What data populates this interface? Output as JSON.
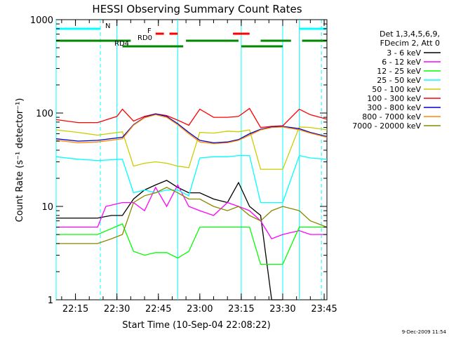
{
  "chart_data": {
    "type": "line",
    "title": "HESSI Observing Summary Count Rates",
    "xlabel": "Start Time (10-Sep-04 22:08:22)",
    "ylabel": "Count Rate (s⁻¹ detector⁻¹)",
    "yscale": "log",
    "ylim": [
      1,
      1000
    ],
    "xlim_minutes_of_day": [
      1328,
      1426
    ],
    "x_ticks": [
      {
        "label": "22:15",
        "minute": 1335
      },
      {
        "label": "22:30",
        "minute": 1350
      },
      {
        "label": "22:45",
        "minute": 1365
      },
      {
        "label": "23:00",
        "minute": 1380
      },
      {
        "label": "23:15",
        "minute": 1395
      },
      {
        "label": "23:30",
        "minute": 1410
      },
      {
        "label": "23:45",
        "minute": 1425
      }
    ],
    "y_ticks": [
      {
        "label": "1",
        "value": 1
      },
      {
        "label": "10",
        "value": 10
      },
      {
        "label": "100",
        "value": 100
      },
      {
        "label": "1000",
        "value": 1000
      }
    ],
    "legend_header": [
      "Det 1,3,4,5,6,9,",
      "FDecim 2, Att 0"
    ],
    "legend_position": "right",
    "series": [
      {
        "name": "3 - 6 keV",
        "color": "#000000",
        "x": [
          1328,
          1336,
          1343,
          1348,
          1352,
          1356,
          1360,
          1364,
          1368,
          1372,
          1376,
          1380,
          1385,
          1390,
          1394,
          1398,
          1402,
          1406,
          1410,
          1416,
          1420,
          1426
        ],
        "y": [
          7.5,
          7.5,
          7.5,
          8,
          8,
          12,
          15,
          17,
          19,
          16,
          14,
          14,
          12,
          11,
          18,
          10,
          8,
          1,
          1,
          null,
          null,
          null
        ]
      },
      {
        "name": "6 - 12 keV",
        "color": "#ff00ff",
        "x": [
          1328,
          1336,
          1343,
          1346,
          1352,
          1356,
          1360,
          1364,
          1368,
          1372,
          1376,
          1380,
          1385,
          1390,
          1394,
          1398,
          1402,
          1406,
          1410,
          1416,
          1420,
          1426
        ],
        "y": [
          6,
          6,
          6,
          10,
          11,
          11,
          9,
          16,
          10,
          17,
          10,
          9,
          8,
          11,
          10,
          9,
          7,
          4.5,
          5,
          5.5,
          5,
          5
        ]
      },
      {
        "name": "12 - 25 keV",
        "color": "#00ff00",
        "x": [
          1328,
          1336,
          1343,
          1352,
          1356,
          1360,
          1364,
          1368,
          1372,
          1376,
          1380,
          1385,
          1390,
          1394,
          1398,
          1402,
          1406,
          1410,
          1416,
          1420,
          1426
        ],
        "y": [
          5,
          5,
          5,
          6.5,
          3.3,
          3,
          3.2,
          3.2,
          2.8,
          3.3,
          6,
          6,
          6,
          6,
          6,
          2.4,
          2.4,
          2.4,
          6,
          6,
          6
        ]
      },
      {
        "name": "25 - 50 keV",
        "color": "#00ffff",
        "x": [
          1328,
          1336,
          1343,
          1352,
          1356,
          1360,
          1364,
          1368,
          1372,
          1376,
          1380,
          1385,
          1390,
          1394,
          1398,
          1402,
          1406,
          1410,
          1416,
          1420,
          1426
        ],
        "y": [
          34,
          32,
          31,
          32,
          14,
          15,
          14,
          15,
          15,
          13,
          33,
          34,
          34,
          35,
          35,
          11,
          11,
          11,
          35,
          33,
          32
        ]
      },
      {
        "name": "50 - 100 keV",
        "color": "#cccc00",
        "x": [
          1328,
          1336,
          1343,
          1352,
          1356,
          1360,
          1364,
          1368,
          1372,
          1376,
          1380,
          1385,
          1390,
          1394,
          1398,
          1402,
          1406,
          1410,
          1416,
          1420,
          1426
        ],
        "y": [
          66,
          62,
          58,
          63,
          27,
          29,
          30,
          29,
          27,
          26,
          62,
          61,
          64,
          63,
          66,
          25,
          25,
          25,
          71,
          70,
          66
        ]
      },
      {
        "name": "100 - 300 keV",
        "color": "#ff0000",
        "x": [
          1328,
          1336,
          1343,
          1350,
          1352,
          1356,
          1360,
          1364,
          1368,
          1372,
          1376,
          1380,
          1385,
          1390,
          1394,
          1398,
          1402,
          1406,
          1410,
          1416,
          1420,
          1426
        ],
        "y": [
          85,
          79,
          79,
          92,
          110,
          82,
          92,
          98,
          94,
          84,
          74,
          110,
          90,
          90,
          92,
          112,
          70,
          72,
          73,
          110,
          96,
          86
        ]
      },
      {
        "name": "300 - 800 keV",
        "color": "#0000cc",
        "x": [
          1328,
          1336,
          1343,
          1352,
          1356,
          1360,
          1364,
          1368,
          1372,
          1376,
          1380,
          1385,
          1390,
          1394,
          1398,
          1402,
          1406,
          1410,
          1416,
          1420,
          1426
        ],
        "y": [
          53,
          50,
          51,
          55,
          75,
          90,
          98,
          92,
          77,
          62,
          51,
          48,
          49,
          52,
          60,
          67,
          71,
          72,
          68,
          62,
          56
        ]
      },
      {
        "name": "800 - 7000 keV",
        "color": "#ff8800",
        "x": [
          1328,
          1336,
          1343,
          1352,
          1356,
          1360,
          1364,
          1368,
          1372,
          1376,
          1380,
          1385,
          1390,
          1394,
          1398,
          1402,
          1406,
          1410,
          1416,
          1420,
          1426
        ],
        "y": [
          51,
          48,
          49,
          53,
          74,
          89,
          96,
          90,
          75,
          60,
          49,
          47,
          48,
          51,
          58,
          66,
          70,
          71,
          66,
          61,
          55
        ]
      },
      {
        "name": "7000 - 20000 keV",
        "color": "#888800",
        "x": [
          1328,
          1336,
          1343,
          1348,
          1352,
          1356,
          1360,
          1364,
          1368,
          1372,
          1376,
          1380,
          1385,
          1390,
          1394,
          1398,
          1402,
          1406,
          1410,
          1416,
          1420,
          1426
        ],
        "y": [
          4,
          4,
          4,
          4.5,
          5,
          11,
          13,
          14,
          16,
          14,
          12,
          12,
          10,
          9,
          10,
          8,
          7,
          9,
          10,
          9,
          7,
          6
        ]
      }
    ],
    "cyan_vertical_dashed_minutes": [
      1344,
      1424
    ],
    "cyan_vertical_solid_minutes": [
      1328,
      1350,
      1372,
      1395,
      1410,
      1416
    ],
    "top_flags": [
      {
        "label": "N",
        "color": "#00ffff",
        "row": 1,
        "segments": [
          [
            1328,
            1344
          ],
          [
            1416,
            1426
          ]
        ]
      },
      {
        "label": "F",
        "color": "#ff0000",
        "row": 2,
        "segments": [
          [
            1364,
            1367
          ],
          [
            1369,
            1372
          ],
          [
            1392,
            1398
          ]
        ]
      },
      {
        "label": "RD0",
        "color": "#008800",
        "row": 3,
        "segments": [
          [
            1328,
            1355
          ],
          [
            1375,
            1394
          ],
          [
            1402,
            1413
          ],
          [
            1417,
            1426
          ]
        ]
      },
      {
        "label": "RD4",
        "color": "#008800",
        "row": 4,
        "segments": [
          [
            1352,
            1374
          ],
          [
            1395,
            1410
          ]
        ]
      }
    ]
  },
  "footer": {
    "timestamp": "9-Dec-2009 11:54"
  }
}
